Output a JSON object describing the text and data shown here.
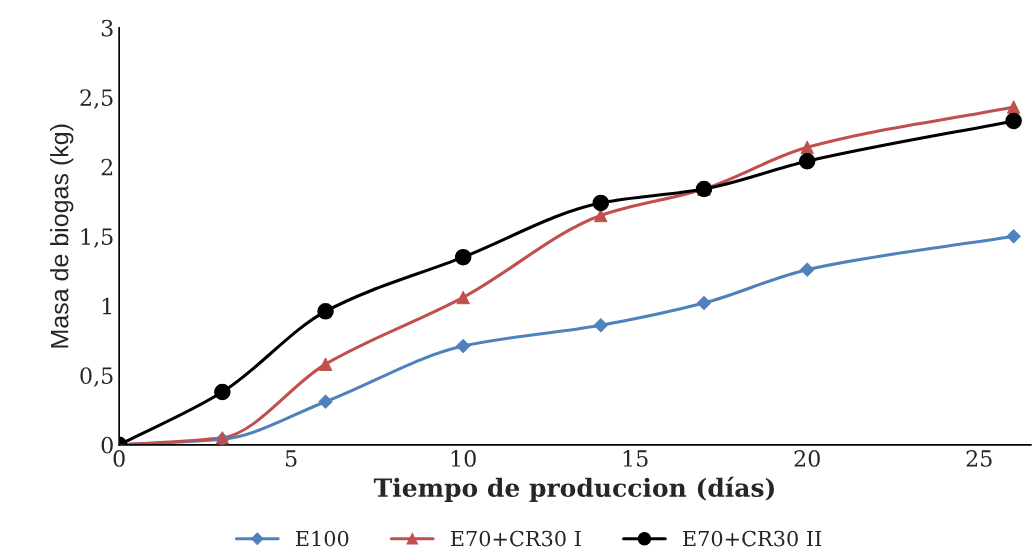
{
  "chart_data": {
    "type": "line",
    "xlabel": "Tiempo de produccion (días)",
    "ylabel": "Masa de biogas (kg)",
    "x": [
      0,
      3,
      6,
      10,
      14,
      17,
      20,
      26
    ],
    "series": [
      {
        "name": "E100",
        "color": "#4f81bd",
        "marker": "diamond",
        "values": [
          0,
          0.04,
          0.31,
          0.71,
          0.86,
          1.02,
          1.26,
          1.5
        ]
      },
      {
        "name": "E70+CR30 I",
        "color": "#c0504d",
        "marker": "triangle",
        "values": [
          0,
          0.05,
          0.58,
          1.06,
          1.65,
          1.84,
          2.14,
          2.43
        ]
      },
      {
        "name": "E70+CR30 II",
        "color": "#000000",
        "marker": "circle",
        "values": [
          0,
          0.38,
          0.96,
          1.35,
          1.74,
          1.84,
          2.04,
          2.33
        ]
      }
    ],
    "xlim": [
      0,
      26.5
    ],
    "xticks": [
      0,
      5,
      10,
      15,
      20,
      25
    ],
    "ylim": [
      0,
      3
    ],
    "yticks": [
      0,
      {
        "value": 0.5,
        "label": "0,5"
      },
      1,
      {
        "value": 1.5,
        "label": "1,5"
      },
      2,
      {
        "value": 2.5,
        "label": "2,5"
      },
      3
    ],
    "grid": false,
    "legend": "bottom",
    "line_style": "solid"
  }
}
